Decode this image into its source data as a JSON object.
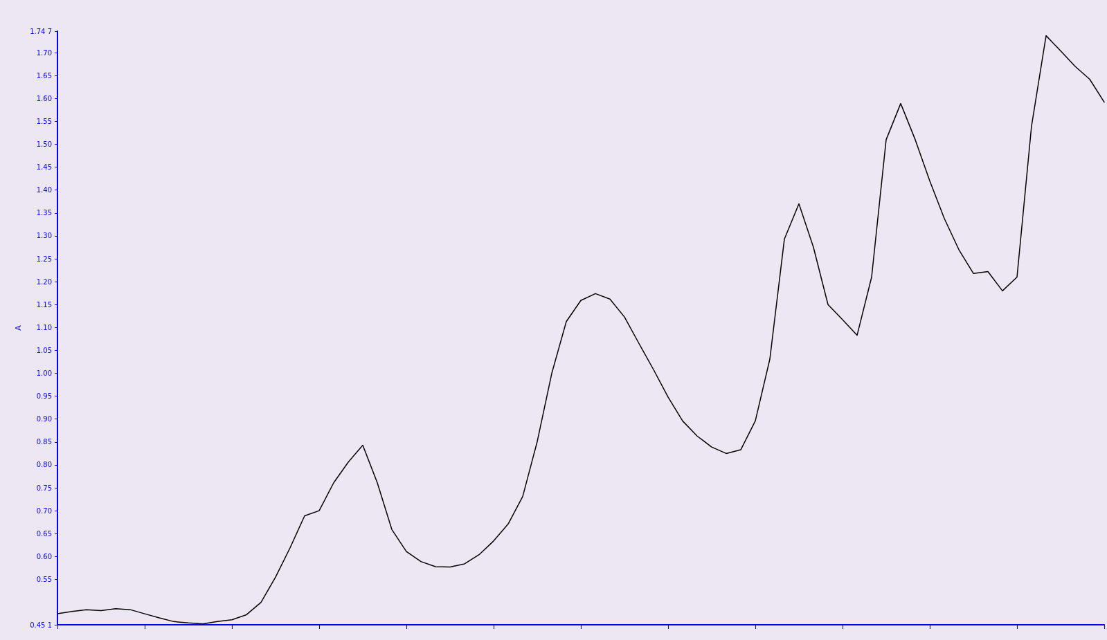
{
  "chart_data": {
    "type": "line",
    "ylabel": "A",
    "color": "#000000",
    "categories": [
      null,
      null,
      null,
      null,
      null,
      null,
      null,
      null,
      null,
      null,
      null,
      null,
      null,
      null,
      null,
      null,
      null,
      null,
      null,
      null,
      null,
      null,
      null,
      null,
      null,
      null,
      null,
      null,
      null,
      null,
      null,
      null,
      null,
      null,
      null,
      null,
      null,
      null,
      null,
      null,
      null,
      null,
      null,
      null,
      null,
      null,
      null,
      null,
      null,
      null,
      null,
      null,
      null,
      null,
      null,
      null,
      null,
      null,
      null,
      null,
      null,
      null,
      null,
      null,
      null,
      null,
      null,
      null,
      null,
      null,
      null,
      null,
      null
    ],
    "values": [
      0.475,
      0.48,
      0.484,
      0.482,
      0.486,
      0.484,
      0.475,
      0.466,
      0.458,
      0.455,
      0.453,
      0.458,
      0.462,
      0.473,
      0.5,
      0.555,
      0.619,
      0.689,
      0.7,
      0.761,
      0.806,
      0.843,
      0.761,
      0.659,
      0.611,
      0.589,
      0.578,
      0.577,
      0.584,
      0.604,
      0.634,
      0.671,
      0.731,
      0.851,
      1.0,
      1.113,
      1.159,
      1.174,
      1.162,
      1.123,
      1.065,
      1.008,
      0.948,
      0.896,
      0.863,
      0.839,
      0.825,
      0.833,
      0.896,
      1.031,
      1.293,
      1.37,
      1.275,
      1.15,
      1.117,
      1.083,
      1.21,
      1.51,
      1.589,
      1.51,
      1.42,
      1.338,
      1.27,
      1.218,
      1.222,
      1.18,
      1.21,
      1.54,
      1.737,
      1.704,
      1.67,
      1.642,
      1.592
    ],
    "ylim": [
      0.451,
      1.747
    ],
    "yticks": [
      {
        "value": 0.451,
        "label": "0.45 1"
      },
      0.55,
      {
        "value": 0.6,
        "label": "0.60"
      },
      0.65,
      {
        "value": 0.7,
        "label": "0.70"
      },
      0.75,
      {
        "value": 0.8,
        "label": "0.80"
      },
      0.85,
      {
        "value": 0.9,
        "label": "0.90"
      },
      0.95,
      {
        "value": 1.0,
        "label": "1.00"
      },
      1.05,
      {
        "value": 1.1,
        "label": "1.10"
      },
      1.15,
      {
        "value": 1.2,
        "label": "1.20"
      },
      1.25,
      {
        "value": 1.3,
        "label": "1.30"
      },
      1.35,
      {
        "value": 1.4,
        "label": "1.40"
      },
      1.45,
      {
        "value": 1.5,
        "label": "1.50"
      },
      1.55,
      {
        "value": 1.6,
        "label": "1.60"
      },
      1.65,
      {
        "value": 1.7,
        "label": "1.70"
      },
      {
        "value": 1.747,
        "label": "1.74 7"
      }
    ],
    "tick_labels": "y",
    "grid": false,
    "marker": "none",
    "line_style": "solid"
  }
}
